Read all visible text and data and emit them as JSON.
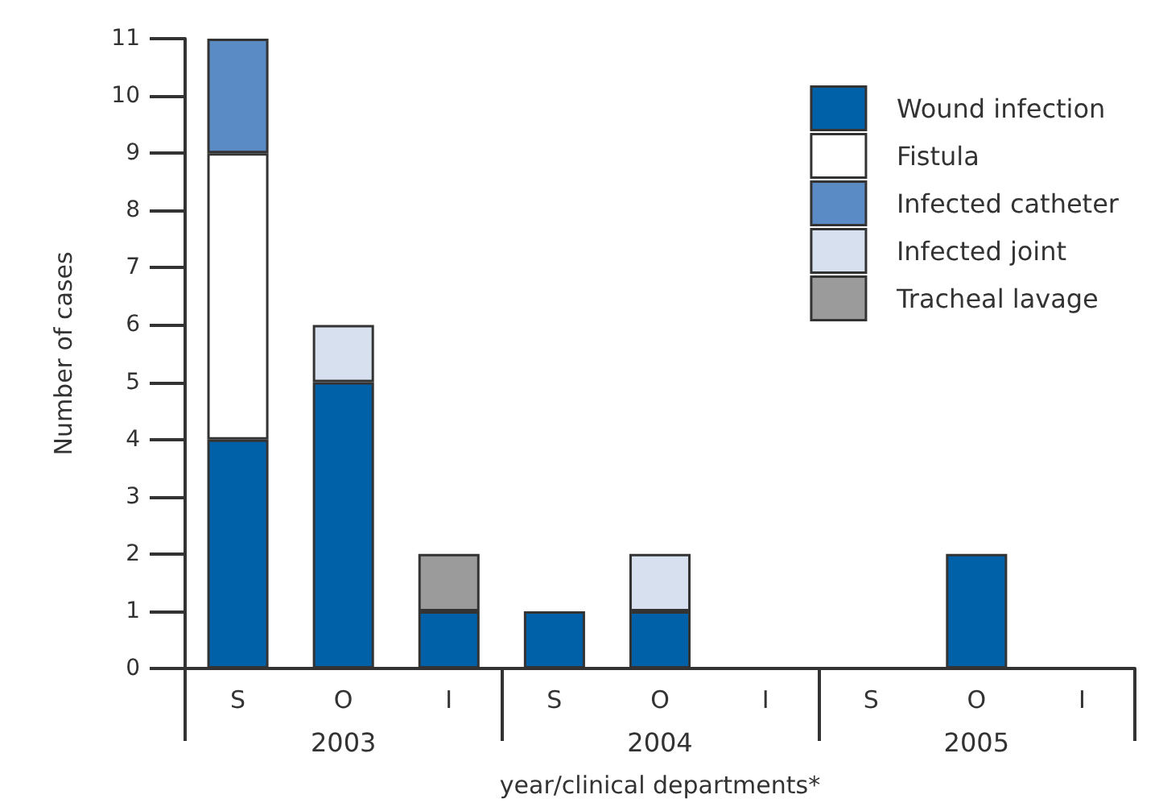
{
  "chart_data": {
    "type": "bar",
    "stacked": true,
    "xlabel": "year/clinical departments*",
    "ylabel": "Number of cases",
    "categories": [
      "S",
      "O",
      "I",
      "S",
      "O",
      "I",
      "S",
      "O",
      "I"
    ],
    "annotations": [
      "2003",
      "2004",
      "2005"
    ],
    "series": [
      {
        "name": "Wound infection",
        "color": "#0060a8",
        "values": [
          4,
          5,
          1,
          1,
          1,
          0,
          0,
          2,
          0
        ]
      },
      {
        "name": "Fistula",
        "color": "#ffffff",
        "values": [
          5,
          0,
          0,
          0,
          0,
          0,
          0,
          0,
          0
        ]
      },
      {
        "name": "Infected catheter",
        "color": "#5b8bc4",
        "values": [
          2,
          0,
          0,
          0,
          0,
          0,
          0,
          0,
          0
        ]
      },
      {
        "name": "Infected joint",
        "color": "#d6e0ee",
        "values": [
          0,
          1,
          0,
          0,
          1,
          0,
          0,
          0,
          0
        ]
      },
      {
        "name": "Tracheal lavage",
        "color": "#9b9b9b",
        "values": [
          0,
          0,
          1,
          0,
          0,
          0,
          0,
          0,
          0
        ]
      }
    ],
    "ylim": [
      0,
      11
    ],
    "yticks": [
      0,
      1,
      2,
      3,
      4,
      5,
      6,
      7,
      8,
      9,
      10,
      11
    ],
    "grid": false,
    "legend": "top right"
  }
}
